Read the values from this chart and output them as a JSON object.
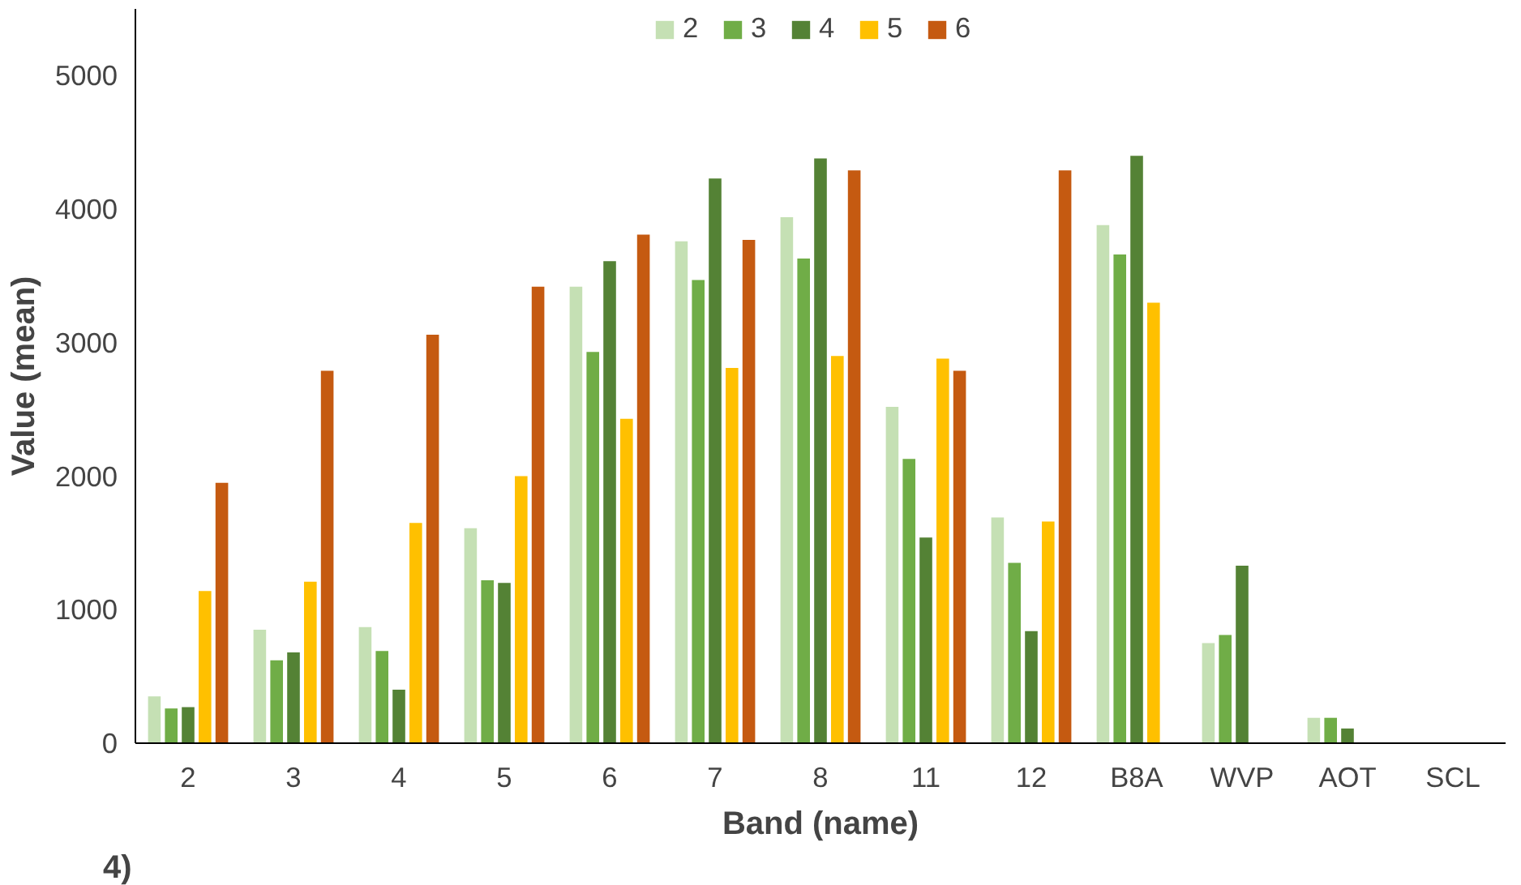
{
  "chart_data": {
    "type": "bar",
    "xlabel": "Band (name)",
    "ylabel": "Value (mean)",
    "categories": [
      "2",
      "3",
      "4",
      "5",
      "6",
      "7",
      "8",
      "11",
      "12",
      "B8A",
      "WVP",
      "AOT",
      "SCL"
    ],
    "series": [
      {
        "name": "2",
        "color": "#c5e0b4",
        "values": [
          350,
          850,
          870,
          1610,
          3420,
          3760,
          3940,
          2520,
          1690,
          3880,
          750,
          190,
          null
        ]
      },
      {
        "name": "3",
        "color": "#70ad47",
        "values": [
          260,
          620,
          690,
          1220,
          2930,
          3470,
          3630,
          2130,
          1350,
          3660,
          810,
          190,
          null
        ]
      },
      {
        "name": "4",
        "color": "#548235",
        "values": [
          270,
          680,
          400,
          1200,
          3610,
          4230,
          4380,
          1540,
          840,
          4400,
          1330,
          110,
          null
        ]
      },
      {
        "name": "5",
        "color": "#ffc000",
        "values": [
          1140,
          1210,
          1650,
          2000,
          2430,
          2810,
          2900,
          2880,
          1660,
          3300,
          null,
          null,
          null
        ]
      },
      {
        "name": "6",
        "color": "#c55a11",
        "values": [
          1950,
          2790,
          3060,
          3420,
          3810,
          3770,
          4290,
          2790,
          4290,
          null,
          null,
          null,
          null
        ]
      }
    ],
    "ylim": [
      0,
      5500
    ],
    "yticks": [
      0,
      1000,
      2000,
      3000,
      4000,
      5000
    ],
    "grid": false,
    "legend": "top",
    "annotations": [
      "4)"
    ]
  }
}
